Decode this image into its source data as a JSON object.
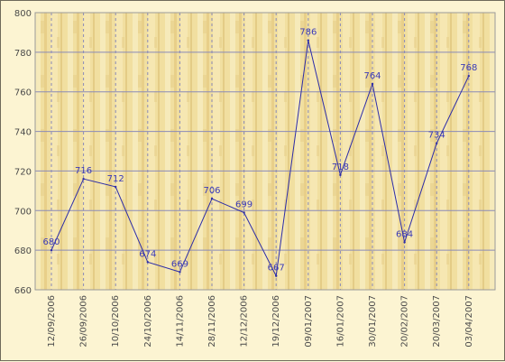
{
  "chart_data": {
    "type": "line",
    "title": "",
    "xlabel": "",
    "ylabel": "",
    "categories": [
      "12/09/2006",
      "26/09/2006",
      "10/10/2006",
      "24/10/2006",
      "14/11/2006",
      "28/11/2006",
      "12/12/2006",
      "19/12/2006",
      "09/01/2007",
      "16/01/2007",
      "30/01/2007",
      "20/02/2007",
      "20/03/2007",
      "03/04/2007"
    ],
    "series": [
      {
        "values": [
          680,
          716,
          712,
          674,
          669,
          706,
          699,
          667,
          786,
          718,
          764,
          684,
          734,
          768
        ]
      }
    ],
    "ylim": [
      660,
      800
    ],
    "yticks": [
      660,
      680,
      700,
      720,
      740,
      760,
      780,
      800
    ],
    "grid": true,
    "legend": "none",
    "colors": {
      "line": "#2c2ca8",
      "labels": "#3a3ab8",
      "grid": "#8a8ab8",
      "background": "#f3e3a8",
      "wood_dark": "#e4cc82",
      "wood_light": "#f8eec4"
    }
  }
}
